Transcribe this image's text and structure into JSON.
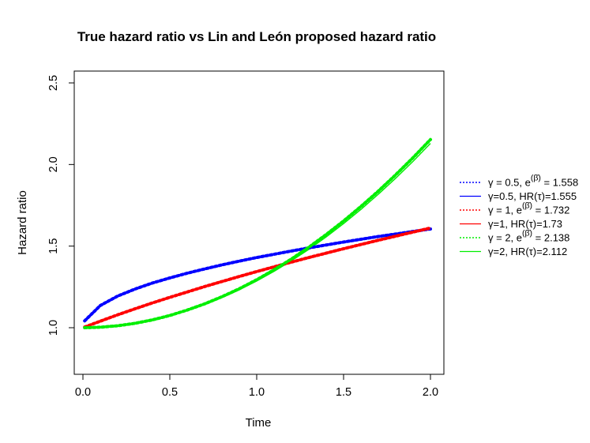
{
  "chart_data": {
    "type": "line",
    "title": "True hazard ratio vs Lin and León proposed hazard ratio",
    "xlabel": "Time",
    "ylabel": "Hazard ratio",
    "xlim": [
      0,
      2
    ],
    "ylim": [
      0.75,
      2.5
    ],
    "xticks": [
      0,
      0.5,
      1,
      1.5,
      2
    ],
    "xtick_labels": [
      "0.0",
      "0.5",
      "1.0",
      "1.5",
      "2.0"
    ],
    "yticks": [
      1,
      1.5,
      2,
      2.5
    ],
    "ytick_labels": [
      "1.0",
      "1.5",
      "2.0",
      "2.5"
    ],
    "legend_position": "right, outside plot",
    "x": [
      0.01,
      0.1,
      0.2,
      0.3,
      0.4,
      0.5,
      0.6,
      0.7,
      0.8,
      0.9,
      1.0,
      1.1,
      1.2,
      1.3,
      1.4,
      1.5,
      1.6,
      1.7,
      1.8,
      1.9,
      2.0
    ],
    "series": [
      {
        "name": "γ = 0.5,  e^(β̄) = 1.558",
        "style": "dotted",
        "color": "#0000ff",
        "values": [
          1.042,
          1.136,
          1.194,
          1.237,
          1.274,
          1.305,
          1.334,
          1.36,
          1.385,
          1.408,
          1.43,
          1.45,
          1.47,
          1.489,
          1.507,
          1.525,
          1.542,
          1.559,
          1.574,
          1.59,
          1.605
        ]
      },
      {
        "name": "γ=0.5, HR(τ)=1.555",
        "style": "solid",
        "color": "#0000ff",
        "values": [
          1.04,
          1.135,
          1.193,
          1.236,
          1.273,
          1.304,
          1.333,
          1.359,
          1.384,
          1.407,
          1.429,
          1.449,
          1.469,
          1.488,
          1.506,
          1.524,
          1.541,
          1.557,
          1.573,
          1.588,
          1.603
        ]
      },
      {
        "name": "γ = 1,  e^(β̄) = 1.732",
        "style": "dotted",
        "color": "#ff0000",
        "values": [
          1.004,
          1.04,
          1.079,
          1.116,
          1.152,
          1.186,
          1.219,
          1.252,
          1.283,
          1.314,
          1.344,
          1.373,
          1.402,
          1.43,
          1.457,
          1.484,
          1.51,
          1.536,
          1.561,
          1.586,
          1.611
        ]
      },
      {
        "name": "γ=1, HR(τ)=1.73",
        "style": "solid",
        "color": "#ff0000",
        "values": [
          1.004,
          1.039,
          1.078,
          1.115,
          1.151,
          1.185,
          1.218,
          1.251,
          1.282,
          1.313,
          1.343,
          1.372,
          1.401,
          1.429,
          1.456,
          1.483,
          1.509,
          1.535,
          1.56,
          1.585,
          1.609
        ]
      },
      {
        "name": "γ = 2,  e^(β̄) = 2.138",
        "style": "dotted",
        "color": "#00ee00",
        "values": [
          1.0,
          1.003,
          1.012,
          1.027,
          1.048,
          1.075,
          1.108,
          1.146,
          1.19,
          1.239,
          1.294,
          1.355,
          1.421,
          1.493,
          1.571,
          1.654,
          1.743,
          1.837,
          1.937,
          2.042,
          2.153
        ]
      },
      {
        "name": "γ=2, HR(τ)=2.112",
        "style": "solid",
        "color": "#00ee00",
        "values": [
          1.0,
          1.003,
          1.012,
          1.026,
          1.046,
          1.072,
          1.104,
          1.141,
          1.184,
          1.232,
          1.286,
          1.345,
          1.41,
          1.48,
          1.556,
          1.638,
          1.725,
          1.818,
          1.916,
          2.02,
          2.129
        ]
      }
    ],
    "legend": [
      {
        "gamma": "γ = 0.5,  e",
        "sup": "(β̄)",
        "rest": " = 1.558",
        "style": "dotted",
        "color": "#0000ff"
      },
      {
        "gamma": "γ=0.5, HR(τ)=1.555",
        "sup": "",
        "rest": "",
        "style": "solid",
        "color": "#0000ff"
      },
      {
        "gamma": "γ = 1,  e",
        "sup": "(β̄)",
        "rest": " = 1.732",
        "style": "dotted",
        "color": "#ff0000"
      },
      {
        "gamma": "γ=1, HR(τ)=1.73",
        "sup": "",
        "rest": "",
        "style": "solid",
        "color": "#ff0000"
      },
      {
        "gamma": "γ = 2,  e",
        "sup": "(β̄)",
        "rest": " = 2.138",
        "style": "dotted",
        "color": "#00ee00"
      },
      {
        "gamma": "γ=2, HR(τ)=2.112",
        "sup": "",
        "rest": "",
        "style": "solid",
        "color": "#00ee00"
      }
    ]
  }
}
